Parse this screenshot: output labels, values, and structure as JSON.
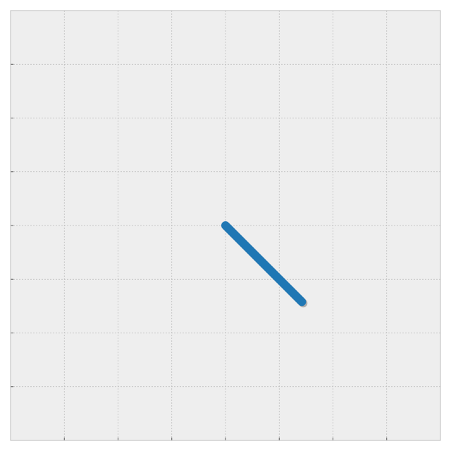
{
  "chart_data": {
    "type": "line",
    "title": "",
    "xlabel": "",
    "ylabel": "",
    "xlim": [
      -4,
      4
    ],
    "ylim": [
      -4,
      4
    ],
    "grid": true,
    "legend": "none",
    "xticks": [
      -4,
      -3,
      -2,
      -1,
      0,
      1,
      2,
      3,
      4
    ],
    "yticks": [
      -4,
      -3,
      -2,
      -1,
      0,
      1,
      2,
      3,
      4
    ],
    "series": [
      {
        "x": [
          0,
          1.42
        ],
        "y": [
          0,
          -1.42
        ],
        "color": "#1f77b4"
      }
    ]
  },
  "colors": {
    "background": "#eeeeee",
    "grid": "#b8b8b8",
    "frame": "#bcbcbc",
    "shadow": "#9e9e9e"
  }
}
